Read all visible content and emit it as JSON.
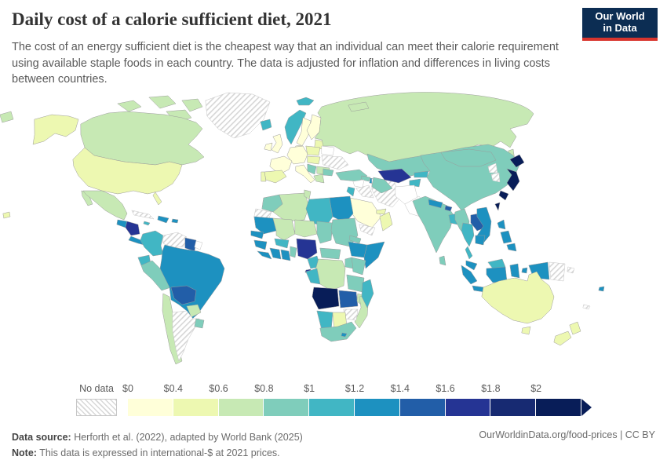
{
  "header": {
    "title": "Daily cost of a calorie sufficient diet, 2021",
    "subtitle": "The cost of an energy sufficient diet is the cheapest way that an individual can meet their calorie requirement using available staple foods in each country. The data is adjusted for inflation and differences in living costs between countries.",
    "logo": {
      "line1": "Our World",
      "line2": "in Data",
      "bg": "#0c2d53",
      "accent": "#d8352e"
    }
  },
  "legend": {
    "no_data_label": "No data",
    "tick_labels": [
      "$0",
      "$0.4",
      "$0.6",
      "$0.8",
      "$1",
      "$1.2",
      "$1.4",
      "$1.6",
      "$1.8",
      "$2"
    ],
    "palette": [
      "#ffffd9",
      "#edf8b1",
      "#c7e9b4",
      "#7fcdbb",
      "#41b6c4",
      "#1d91c0",
      "#225ea8",
      "#253494",
      "#172a72",
      "#081d58"
    ],
    "border_color": "#9b9b9b",
    "nodata_border_color": "#c6c6c6"
  },
  "footer": {
    "source_label": "Data source:",
    "source_text": " Herforth et al. (2022), adapted by World Bank (2025)",
    "note_label": "Note:",
    "note_text": " This data is expressed in international-$ at 2021 prices.",
    "link": "OurWorldinData.org/food-prices | CC BY"
  },
  "map": {
    "fills": {
      "alaska": 1,
      "usa": 1,
      "florida": 1,
      "hawaii": 1,
      "canada": 2,
      "arctic1": 2,
      "arctic2": 2,
      "arctic3": 2,
      "arctic4": 2,
      "greenland": "nodata",
      "mexico": 2,
      "baja": 2,
      "guatemala": 5,
      "honduras-nicaragua": 7,
      "costa-rica-panama": 5,
      "cuba": "nodata",
      "hispaniola": 5,
      "jamaica": 4,
      "puerto-rico": 5,
      "colombia": 4,
      "venezuela": "nodata",
      "guyana-suriname": 6,
      "french-guiana": "plain",
      "ecuador": 4,
      "peru": 3,
      "brazil": 5,
      "bolivia": 6,
      "paraguay": 2,
      "chile": 2,
      "argentina": "nodata",
      "uruguay": 3,
      "iceland": 4,
      "svalbard": 4,
      "norway": 4,
      "sweden": 0,
      "finland": 0,
      "baltics": 1,
      "uk": 0,
      "ireland": 0,
      "denmark": 0,
      "germany": 0,
      "france": 0,
      "spain": 1,
      "portugal": 1,
      "italy": 0,
      "poland": 1,
      "central-europe": 1,
      "belarus": "plain",
      "ukraine": "nodata",
      "romania": 2,
      "balkans": 3,
      "greece": 2,
      "bulgaria": 3,
      "russia": 2,
      "russia-wrap": 2,
      "sakhalin": 2,
      "novaya-zemlya": 2,
      "turkey": 3,
      "syria": "plain",
      "jordan-israel": 4,
      "iraq": "nodata",
      "iran": "nodata",
      "saudi-arabia": 0,
      "yemen": "nodata",
      "oman": 1,
      "uae-qatar": 1,
      "georgia": 3,
      "azerbaijan": 5,
      "kazakhstan": 3,
      "uzbekistan": 7,
      "turkmenistan": 3,
      "kyrgyzstan": 4,
      "tajikistan": 4,
      "afghanistan": "plain",
      "pakistan": "plain",
      "india": 3,
      "india-ne": 3,
      "nepal": 5,
      "bhutan": 6,
      "bangladesh": 4,
      "sri-lanka": 3,
      "china": 3,
      "mongolia": 3,
      "north-korea": "nodata",
      "south-korea": "nodata",
      "japan-hokkaido": 9,
      "japan-honshu": 9,
      "japan-kyushu": 9,
      "taiwan": 9,
      "myanmar": 3,
      "thailand": 4,
      "thailand-peninsula": 4,
      "laos": 6,
      "vietnam": 5,
      "cambodia": 5,
      "malaysia": 5,
      "borneo-malaysia": 4,
      "borneo-indonesia": 5,
      "sumatra": 5,
      "java": 5,
      "sulawesi": 5,
      "moluccas": 5,
      "west-papua": 5,
      "papua-new-guinea": "nodata",
      "png-island": "nodata",
      "new-caledonia": "nodata",
      "philippines1": 5,
      "philippines2": 5,
      "philippines3": 5,
      "fiji": 5,
      "australia": 1,
      "tasmania": 1,
      "nz-north": 1,
      "nz-south": 1,
      "morocco": 3,
      "western-sahara": "nodata",
      "algeria": 2,
      "tunisia": 2,
      "libya": 4,
      "egypt": 5,
      "mauritania": 5,
      "mali": 2,
      "niger": 2,
      "chad": 3,
      "sudan": 3,
      "eritrea": 3,
      "senegal": 5,
      "guinea": 5,
      "sierra-leone-liberia": 5,
      "cote-divoire": 5,
      "ghana": 5,
      "burkina-faso": 4,
      "togo-benin": 3,
      "nigeria": 7,
      "cameroon": 4,
      "equatorial-guinea": 7,
      "car": 3,
      "ethiopia": 5,
      "somalia": 5,
      "kenya": 3,
      "uganda": 3,
      "drc": 2,
      "gabon-congo": 4,
      "tanzania": 3,
      "angola": 9,
      "zambia": 6,
      "malawi": 2,
      "mozambique": 2,
      "zimbabwe": "nodata",
      "botswana": 1,
      "namibia": 4,
      "south-africa": 3,
      "lesotho": 5,
      "madagascar": 4
    }
  },
  "chart_data": {
    "type": "choropleth-map",
    "title": "Daily cost of a calorie sufficient diet, 2021",
    "unit": "international-$ per day (2021 prices)",
    "legend_bins": [
      {
        "label": "$0–0.4",
        "color": "#ffffd9"
      },
      {
        "label": "$0.4–0.6",
        "color": "#edf8b1"
      },
      {
        "label": "$0.6–0.8",
        "color": "#c7e9b4"
      },
      {
        "label": "$0.8–1",
        "color": "#7fcdbb"
      },
      {
        "label": "$1–1.2",
        "color": "#41b6c4"
      },
      {
        "label": "$1.2–1.4",
        "color": "#1d91c0"
      },
      {
        "label": "$1.4–1.6",
        "color": "#225ea8"
      },
      {
        "label": "$1.6–1.8",
        "color": "#253494"
      },
      {
        "label": "$1.8–2",
        "color": "#172a72"
      },
      {
        "label": "$2+",
        "color": "#081d58"
      }
    ],
    "no_data": {
      "label": "No data",
      "pattern": "diagonal-hatch"
    },
    "countries": {
      "United States": "$0.4–0.6",
      "Canada": "$0.6–0.8",
      "Greenland": "No data",
      "Mexico": "$0.6–0.8",
      "Guatemala": "$1.2–1.4",
      "Honduras": "$1.6–1.8",
      "Nicaragua": "$1.6–1.8",
      "Costa Rica": "$1.2–1.4",
      "Panama": "$1.2–1.4",
      "Cuba": "No data",
      "Haiti": "$1.2–1.4",
      "Dominican Republic": "$1.2–1.4",
      "Jamaica": "$1–1.2",
      "Puerto Rico": "$1.2–1.4",
      "Colombia": "$1–1.2",
      "Venezuela": "No data",
      "Guyana": "$1.4–1.6",
      "Ecuador": "$1–1.2",
      "Peru": "$0.8–1",
      "Brazil": "$1.2–1.4",
      "Bolivia": "$1.4–1.6",
      "Paraguay": "$0.6–0.8",
      "Chile": "$0.6–0.8",
      "Argentina": "No data",
      "Uruguay": "$0.8–1",
      "Iceland": "$1–1.2",
      "Norway": "$1–1.2",
      "Sweden": "$0–0.4",
      "Finland": "$0–0.4",
      "United Kingdom": "$0–0.4",
      "Ireland": "$0–0.4",
      "France": "$0–0.4",
      "Germany": "$0–0.4",
      "Spain": "$0.4–0.6",
      "Portugal": "$0.4–0.6",
      "Italy": "$0–0.4",
      "Poland": "$0.4–0.6",
      "Belarus": "No data",
      "Ukraine": "No data",
      "Romania": "$0.6–0.8",
      "Greece": "$0.6–0.8",
      "Bulgaria": "$0.8–1",
      "Russia": "$0.6–0.8",
      "Turkey": "$0.8–1",
      "Syria": "No data",
      "Iraq": "No data",
      "Iran": "No data",
      "Saudi Arabia": "$0–0.4",
      "Yemen": "No data",
      "Oman": "$0.4–0.6",
      "Israel": "$1–1.2",
      "Jordan": "$1–1.2",
      "Georgia": "$0.8–1",
      "Azerbaijan": "$1.2–1.4",
      "Kazakhstan": "$0.8–1",
      "Uzbekistan": "$1.6–1.8",
      "Turkmenistan": "$0.8–1",
      "Kyrgyzstan": "$1–1.2",
      "Tajikistan": "$1–1.2",
      "Afghanistan": "No data",
      "Pakistan": "No data",
      "India": "$0.8–1",
      "Nepal": "$1.2–1.4",
      "Bhutan": "$1.4–1.6",
      "Bangladesh": "$1–1.2",
      "Sri Lanka": "$0.8–1",
      "China": "$0.8–1",
      "Mongolia": "$0.8–1",
      "North Korea": "No data",
      "South Korea": "No data",
      "Japan": "$2+",
      "Taiwan": "$2+",
      "Myanmar": "$0.8–1",
      "Thailand": "$1–1.2",
      "Laos": "$1.4–1.6",
      "Vietnam": "$1.2–1.4",
      "Cambodia": "$1.2–1.4",
      "Malaysia": "$1.2–1.4",
      "Philippines": "$1.2–1.4",
      "Indonesia": "$1.2–1.4",
      "Papua New Guinea": "No data",
      "Fiji": "$1.2–1.4",
      "Australia": "$0.4–0.6",
      "New Zealand": "$0.4–0.6",
      "Morocco": "$0.8–1",
      "Western Sahara": "No data",
      "Algeria": "$0.6–0.8",
      "Tunisia": "$0.6–0.8",
      "Libya": "$1–1.2",
      "Egypt": "$1.2–1.4",
      "Mauritania": "$1.2–1.4",
      "Mali": "$0.6–0.8",
      "Niger": "$0.6–0.8",
      "Chad": "$0.8–1",
      "Sudan": "$0.8–1",
      "Eritrea": "$0.8–1",
      "Senegal": "$1.2–1.4",
      "Guinea": "$1.2–1.4",
      "Sierra Leone": "$1.2–1.4",
      "Liberia": "$1.2–1.4",
      "Cote d'Ivoire": "$1.2–1.4",
      "Ghana": "$1.2–1.4",
      "Burkina Faso": "$1–1.2",
      "Togo": "$0.8–1",
      "Benin": "$0.8–1",
      "Nigeria": "$1.6–1.8",
      "Cameroon": "$1–1.2",
      "Equatorial Guinea": "$1.6–1.8",
      "Central African Republic": "$0.8–1",
      "Ethiopia": "$1.2–1.4",
      "Somalia": "$1.2–1.4",
      "Kenya": "$0.8–1",
      "Uganda": "$0.8–1",
      "Democratic Republic of Congo": "$0.6–0.8",
      "Gabon": "$1–1.2",
      "Congo": "$1–1.2",
      "Tanzania": "$0.8–1",
      "Angola": "$2+",
      "Zambia": "$1.4–1.6",
      "Malawi": "$0.6–0.8",
      "Mozambique": "$0.6–0.8",
      "Zimbabwe": "No data",
      "Botswana": "$0.4–0.6",
      "Namibia": "$1–1.2",
      "South Africa": "$0.8–1",
      "Lesotho": "$1.2–1.4",
      "Madagascar": "$1–1.2"
    }
  }
}
